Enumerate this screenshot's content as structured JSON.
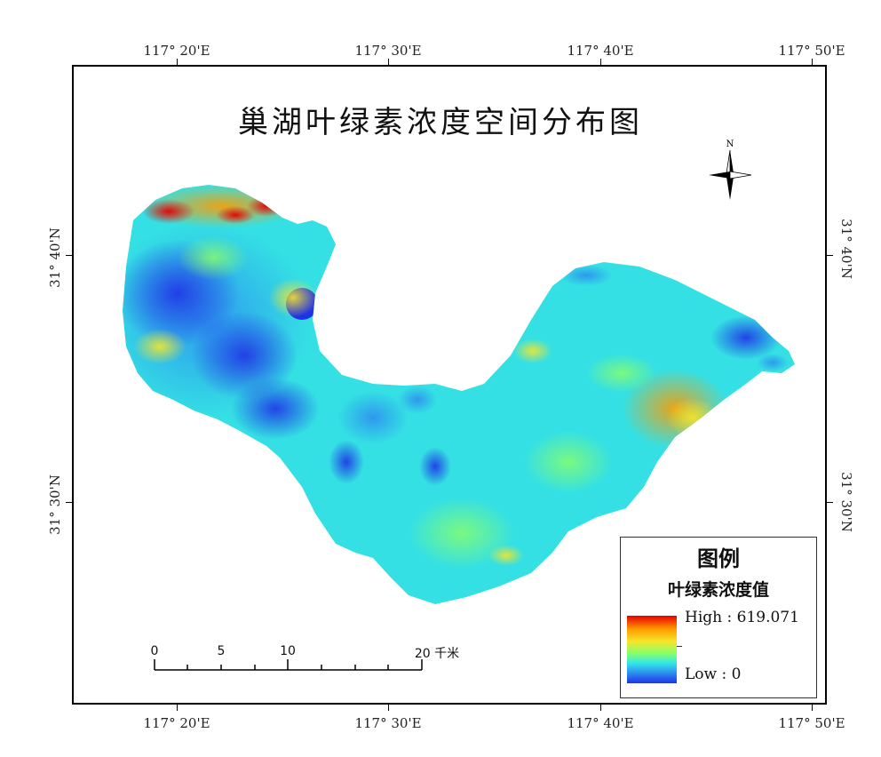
{
  "map": {
    "title": "巢湖叶绿素浓度空间分布图",
    "top_ticks": [
      "117° 20'E",
      "117° 30'E",
      "117° 40'E",
      "117° 50'E"
    ],
    "bottom_ticks": [
      "117° 20'E",
      "117° 30'E",
      "117° 40'E",
      "117° 50'E"
    ],
    "left_ticks": [
      "31° 40'N",
      "31° 30'N"
    ],
    "right_ticks": [
      "31° 40'N",
      "31° 30'N"
    ]
  },
  "north_arrow": {
    "label": "N"
  },
  "legend": {
    "title": "图例",
    "subtitle": "叶绿素浓度值",
    "high_label": "High : 619.071",
    "low_label": "Low : 0",
    "ramp_colors": [
      "#e60000",
      "#ff9c00",
      "#f5e62a",
      "#8cff66",
      "#33e8e6",
      "#2d8cf0",
      "#1f33e6"
    ]
  },
  "scale_bar": {
    "labels": [
      "0",
      "5",
      "10",
      "20 千米"
    ]
  },
  "colors": {
    "lake_base": "#34e0e4",
    "high": "#e60000",
    "low": "#1f33e6"
  }
}
